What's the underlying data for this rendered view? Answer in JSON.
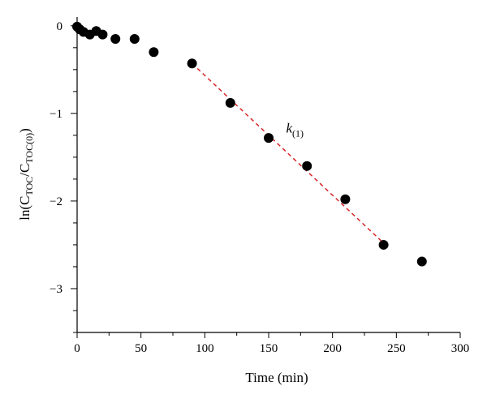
{
  "chart_data": {
    "type": "scatter",
    "xlabel": "Time (min)",
    "ylabel": {
      "base": "ln(C",
      "sub1": "TOC",
      "mid": "/C",
      "sub2": "TOC(0)",
      "end": ")"
    },
    "xlim": [
      0,
      300
    ],
    "ylim": [
      -3.5,
      0.1
    ],
    "x_ticks": [
      0,
      50,
      100,
      150,
      200,
      250,
      300
    ],
    "y_ticks": [
      0,
      -1,
      -2,
      -3
    ],
    "x_tick_labels": [
      "0",
      "50",
      "100",
      "150",
      "200",
      "250",
      "300"
    ],
    "y_tick_labels": [
      "0",
      "−1",
      "−2",
      "−3"
    ],
    "grid": false,
    "series": [
      {
        "marker": "filled-circle",
        "color": "#000000",
        "x": [
          0,
          2,
          5,
          10,
          15,
          20,
          30,
          45,
          60,
          90,
          120,
          150,
          180,
          210,
          240,
          270
        ],
        "y": [
          -0.01,
          -0.04,
          -0.07,
          -0.1,
          -0.06,
          -0.1,
          -0.15,
          -0.15,
          -0.3,
          -0.43,
          -0.88,
          -1.28,
          -1.6,
          -1.98,
          -2.5,
          -2.69
        ]
      }
    ],
    "fit_line": {
      "style": "dashed",
      "color": "#d62728",
      "x": [
        90,
        240
      ],
      "y": [
        -0.43,
        -2.48
      ]
    },
    "annotation": {
      "text": "k",
      "sub": "(1)",
      "x": 170,
      "y": -1.22
    }
  }
}
